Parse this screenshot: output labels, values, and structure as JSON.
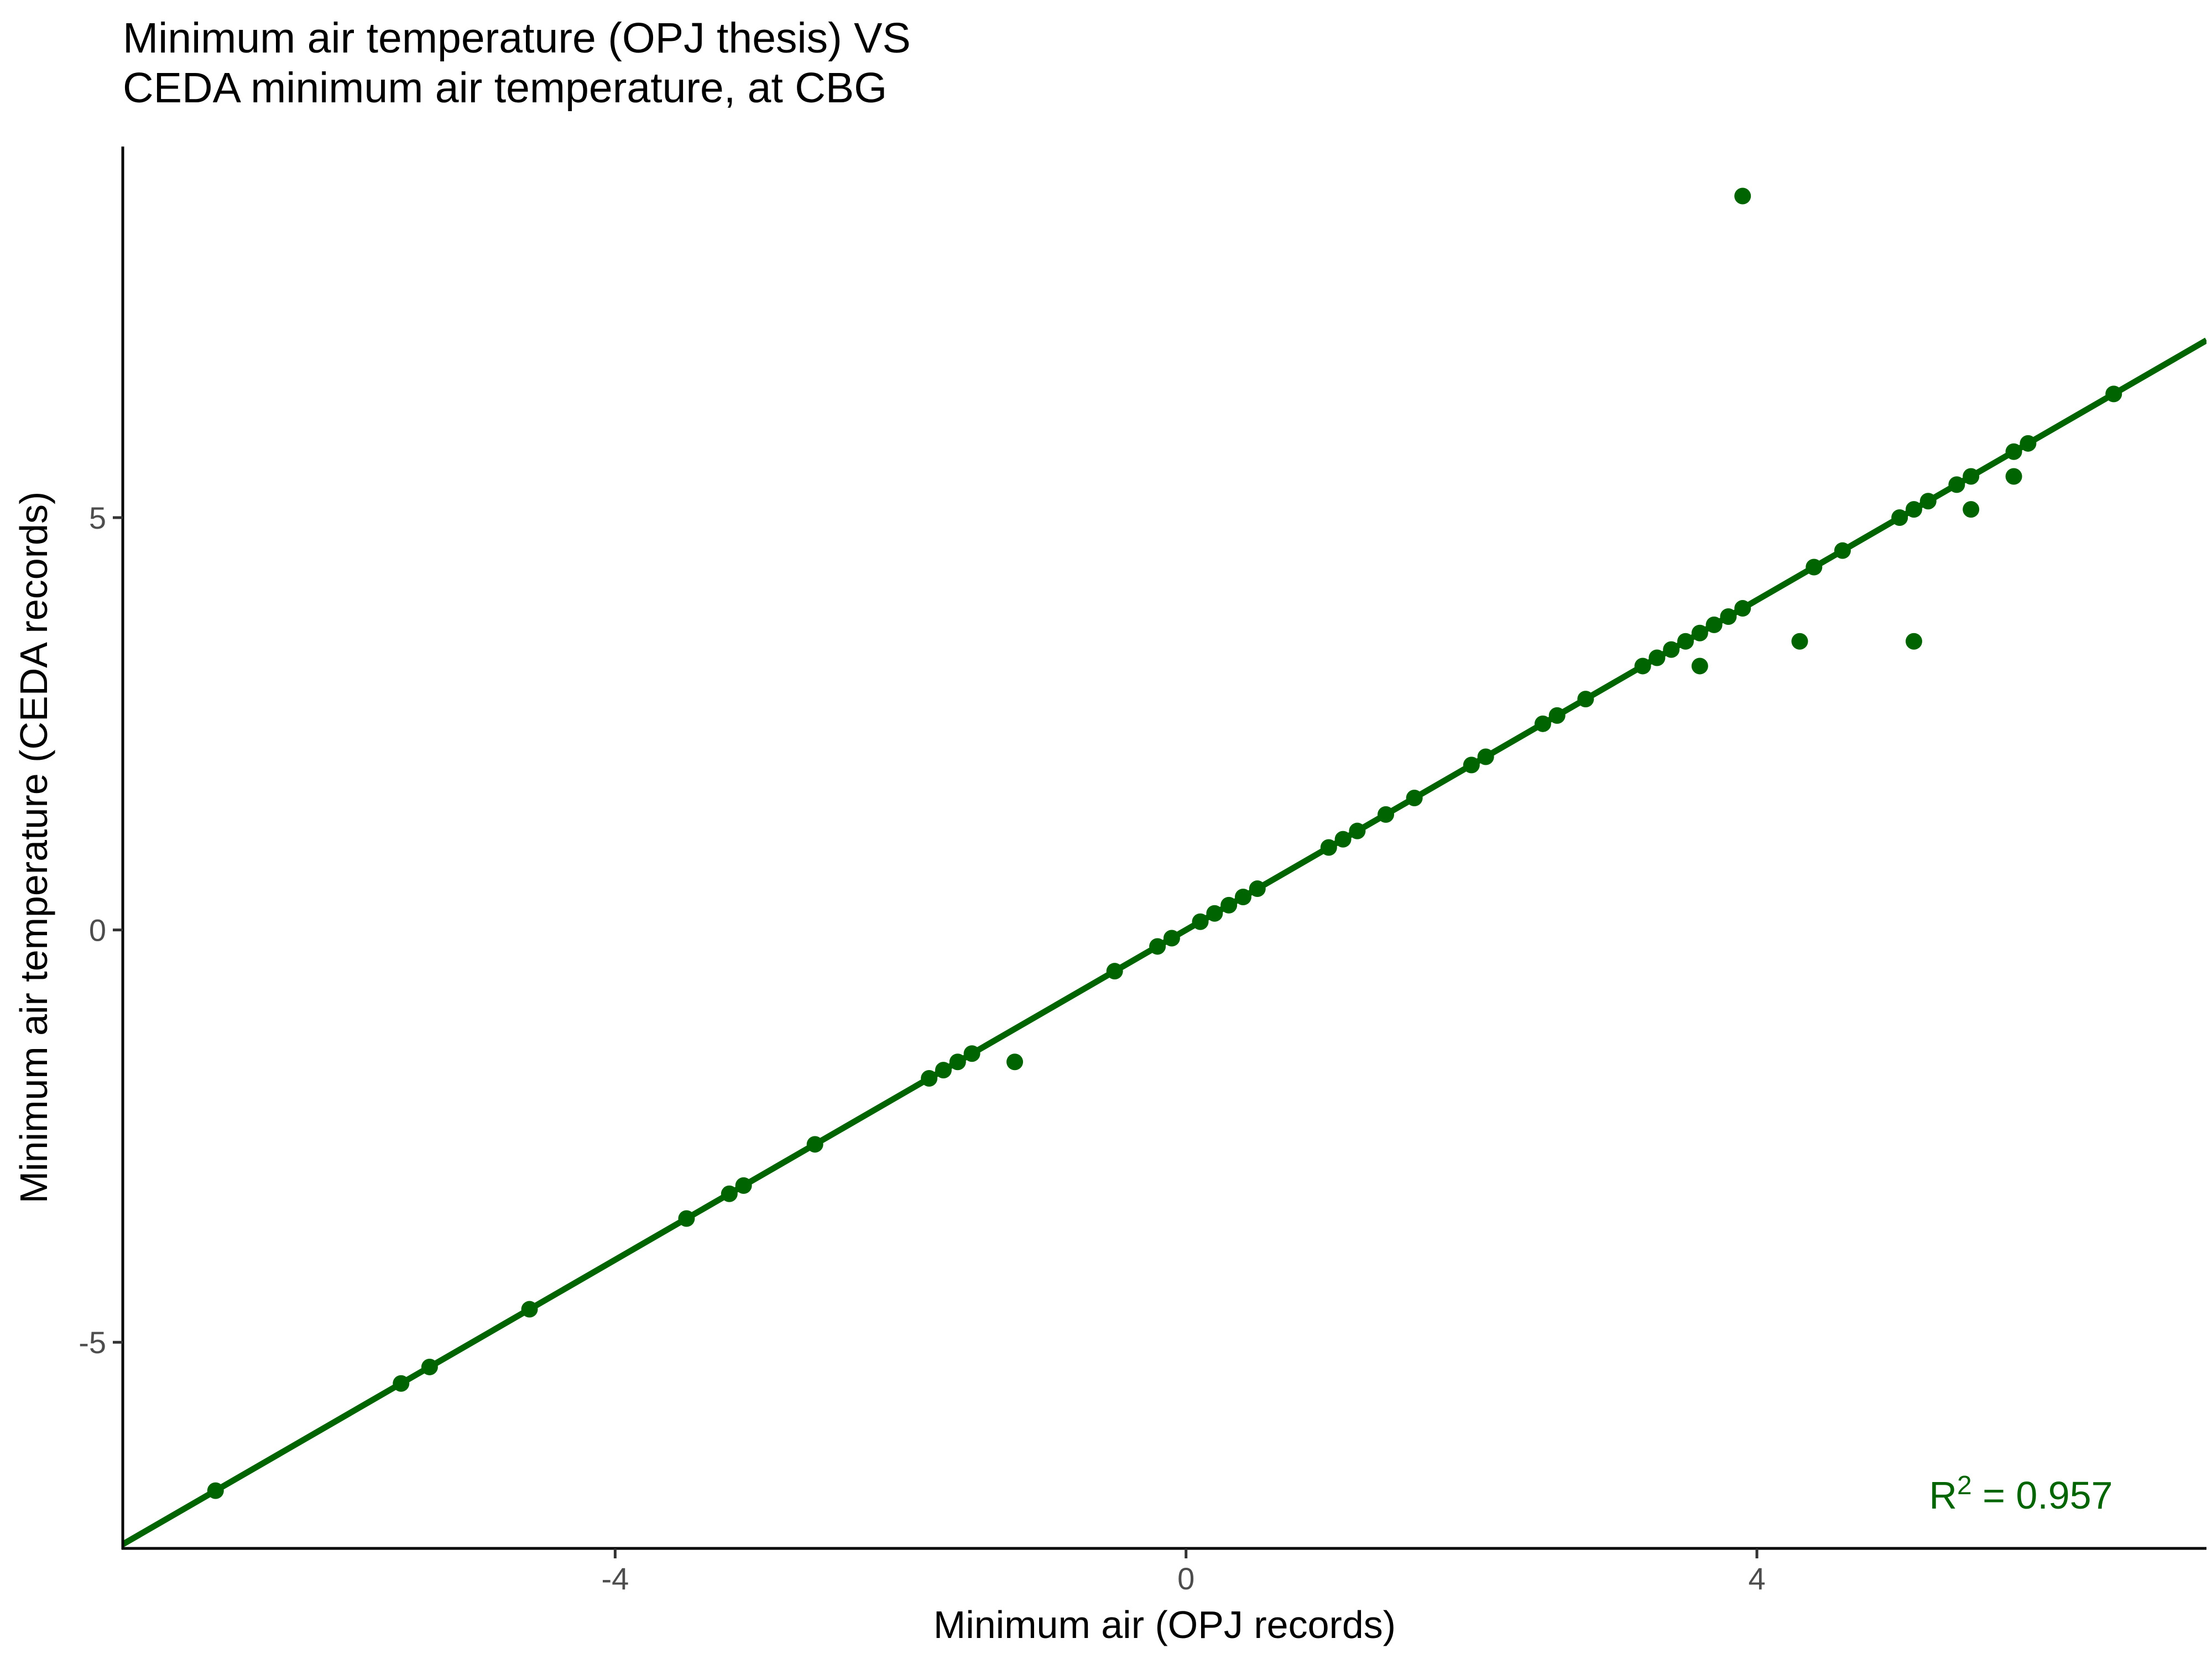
{
  "chart_data": {
    "type": "scatter",
    "title": "Minimum air temperature (OPJ thesis) VS\nCEDA minimum air temperature, at CBG",
    "xlabel": "Minimum air (OPJ records)",
    "ylabel": "Minimum air temperature (CEDA records)",
    "xlim": [
      -7.45,
      7.15
    ],
    "ylim": [
      -7.5,
      9.5
    ],
    "xticks": [
      -4,
      0,
      4
    ],
    "yticks": [
      -5,
      0,
      5
    ],
    "xtick_labels": [
      "-4",
      "0",
      "4"
    ],
    "ytick_labels": [
      "-5",
      "0",
      "5"
    ],
    "grid": false,
    "legend": "none",
    "point_color": "#006400",
    "line_color": "#006400",
    "regression": {
      "slope": 1.0,
      "intercept": 0.0
    },
    "annotation": {
      "base": "R",
      "superscript": "2",
      "text": " = 0.957",
      "x": 5.85,
      "y": -6.85
    },
    "x": [
      -6.8,
      -5.5,
      -5.3,
      -4.6,
      -3.5,
      -3.2,
      -3.1,
      -2.6,
      -1.8,
      -1.7,
      -1.6,
      -1.5,
      -1.2,
      -0.5,
      -0.2,
      -0.1,
      0.1,
      0.2,
      0.3,
      0.4,
      0.5,
      1.0,
      1.1,
      1.2,
      1.4,
      1.6,
      2.0,
      2.1,
      2.5,
      2.6,
      2.8,
      3.2,
      3.3,
      3.4,
      3.5,
      3.6,
      3.6,
      3.7,
      3.8,
      3.9,
      3.9,
      4.3,
      4.4,
      4.6,
      5.0,
      5.1,
      5.1,
      5.2,
      5.4,
      5.5,
      5.5,
      5.8,
      5.8,
      5.9,
      6.5
    ],
    "y": [
      -6.8,
      -5.5,
      -5.3,
      -4.6,
      -3.5,
      -3.2,
      -3.1,
      -2.6,
      -1.8,
      -1.7,
      -1.6,
      -1.5,
      -1.6,
      -0.5,
      -0.2,
      -0.1,
      0.1,
      0.2,
      0.3,
      0.4,
      0.5,
      1.0,
      1.1,
      1.2,
      1.4,
      1.6,
      2.0,
      2.1,
      2.5,
      2.6,
      2.8,
      3.2,
      3.3,
      3.4,
      3.5,
      3.6,
      3.2,
      3.7,
      3.8,
      3.9,
      8.9,
      3.5,
      4.4,
      4.6,
      5.0,
      5.1,
      3.5,
      5.2,
      5.4,
      5.5,
      5.1,
      5.8,
      5.5,
      5.9,
      6.5
    ]
  }
}
